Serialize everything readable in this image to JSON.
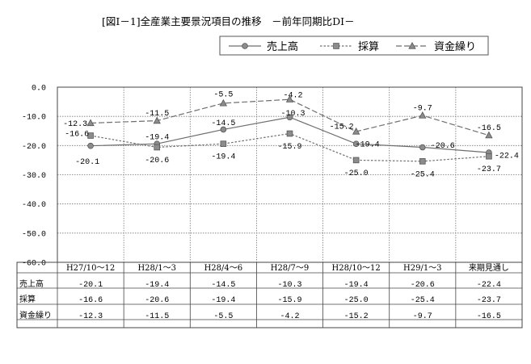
{
  "chart_data": {
    "type": "line",
    "title": "[図Ⅰ－1]全産業主要景況項目の推移　－前年同期比DI－",
    "categories": [
      "H27/10～12",
      "H28/1～3",
      "H28/4～6",
      "H28/7～9",
      "H28/10～12",
      "H29/1～3",
      "来期見通し"
    ],
    "series": [
      {
        "name": "売上高",
        "values": [
          -20.1,
          -19.4,
          -14.5,
          -10.3,
          -19.4,
          -20.6,
          -22.4
        ],
        "labels": [
          "-20.1",
          "-19.4",
          "-14.5",
          "-10.3",
          "-19.4",
          "-20.6",
          "-22.4"
        ],
        "marker": "circle",
        "dash": "solid"
      },
      {
        "name": "採算",
        "values": [
          -16.6,
          -20.6,
          -19.4,
          -15.9,
          -25.0,
          -25.4,
          -23.7
        ],
        "labels": [
          "-16.6",
          "-20.6",
          "-19.4",
          "-15.9",
          "-25.0",
          "-25.4",
          "-23.7"
        ],
        "marker": "square",
        "dash": "dotted"
      },
      {
        "name": "資金繰り",
        "values": [
          -12.3,
          -11.5,
          -5.5,
          -4.2,
          -15.2,
          -9.7,
          -16.5
        ],
        "labels": [
          "-12.3",
          "-11.5",
          "-5.5",
          "-4.2",
          "-15.2",
          "-9.7",
          "-16.5"
        ],
        "marker": "triangle",
        "dash": "dashed"
      }
    ],
    "ylim": [
      -60.0,
      0.0
    ],
    "yticks": [
      "0.0",
      "-10.0",
      "-20.0",
      "-30.0",
      "-40.0",
      "-50.0",
      "-60.0"
    ],
    "grid": true,
    "legend": "top-right",
    "table": [
      {
        "label": "売上高",
        "cells": [
          "-20.1",
          "-19.4",
          "-14.5",
          "-10.3",
          "-19.4",
          "-20.6",
          "-22.4"
        ]
      },
      {
        "label": "採算",
        "cells": [
          "-16.6",
          "-20.6",
          "-19.4",
          "-15.9",
          "-25.0",
          "-25.4",
          "-23.7"
        ]
      },
      {
        "label": "資金繰り",
        "cells": [
          "-12.3",
          "-11.5",
          "-5.5",
          "-4.2",
          "-15.2",
          "-9.7",
          "-16.5"
        ]
      }
    ]
  },
  "colors": {
    "line": "#6e6e6e",
    "marker": "#8c8c8c",
    "grid": "#777777",
    "axis": "#444444"
  }
}
